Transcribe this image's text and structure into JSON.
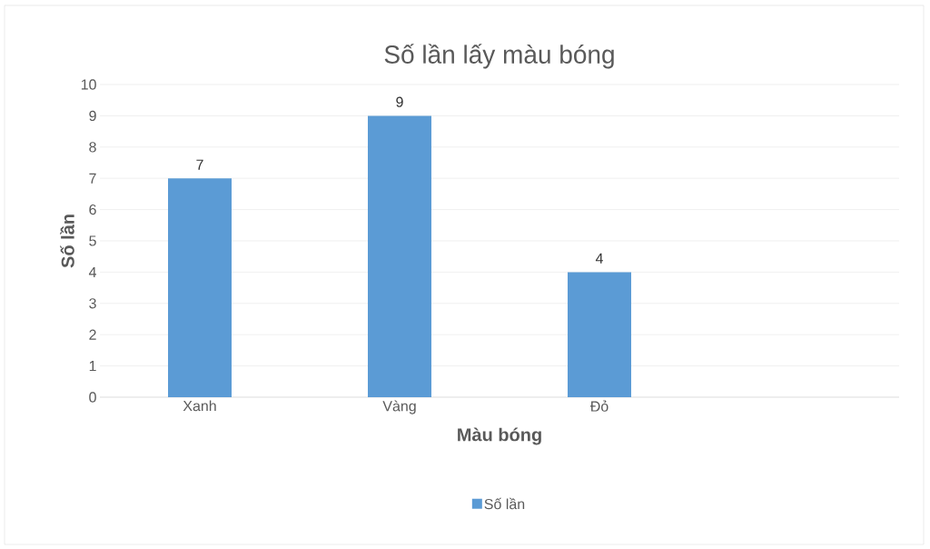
{
  "chart_data": {
    "type": "bar",
    "title": "Số lần lấy màu bóng",
    "xlabel": "Màu bóng",
    "ylabel": "Số lần",
    "categories": [
      "Xanh",
      "Vàng",
      "Đỏ",
      null
    ],
    "series": [
      {
        "name": "Số lần",
        "color": "#5b9bd5",
        "values": [
          7,
          9,
          4,
          null
        ]
      }
    ],
    "ylim": [
      0,
      10
    ],
    "yticks": [
      0,
      1,
      2,
      3,
      4,
      5,
      6,
      7,
      8,
      9,
      10
    ],
    "grid": "y",
    "legend": "bottom",
    "data_labels": true
  }
}
